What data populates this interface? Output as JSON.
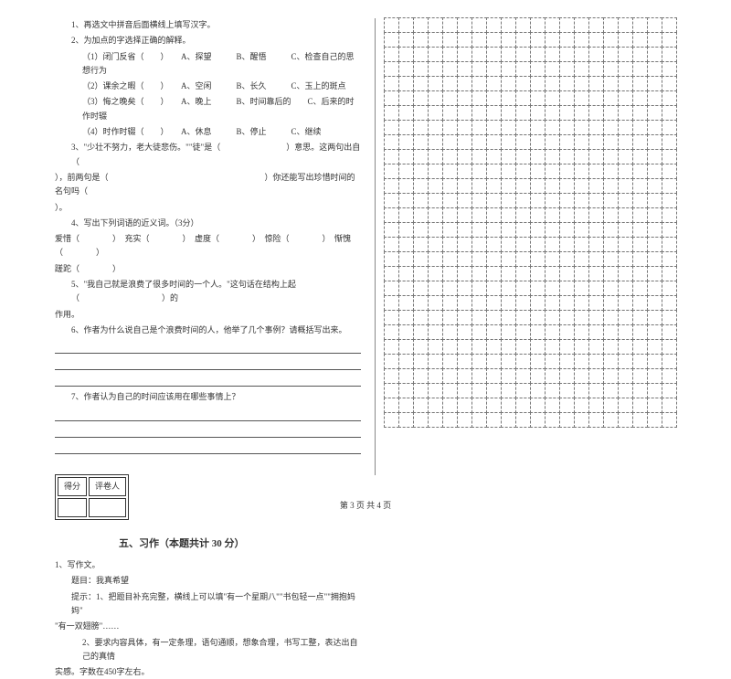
{
  "left": {
    "q1": "1、再选文中拼音后面横线上填写汉字。",
    "q2": "2、为加点的字选择正确的解释。",
    "q2_1": "（1）闭门反省（　　）　　A、探望　　　B、醒悟　　　C、检查自己的思想行为",
    "q2_2": "（2）课余之暇（　　）　　A、空闲　　　B、长久　　　C、玉上的斑点",
    "q2_3": "（3）悔之晚矣（　　）　　A、晚上　　　B、时间靠后的　　C、后来的时作时辍",
    "q2_4": "（4）时作时辍（　　）　　A、休息　　　B、停止　　　C、继续",
    "q3a": "3、\"少壮不努力，老大徒悲伤。\"\"徒\"是（　　　　　　　　）意思。这两句出自（",
    "q3b": "），前两句是（　　　　　　　　　　　　　　　　　　　）你还能写出珍惜时间的名句吗（",
    "q3c": "）。",
    "q4a": "4、写出下列词语的近义词。（3分）",
    "q4b": "爱惜（　　　　）　充实（　　　　）　虚度（　　　　）　惊险（　　　　）　惭愧（　　　　）",
    "q4c": "蹉跎（　　　　）",
    "q5a": "5、\"我自己就是浪费了很多时间的一个人。\"这句话在结构上起（　　　　　　　　　　）的",
    "q5b": "作用。",
    "q6": "6、作者为什么说自己是个浪费时间的人，他举了几个事例？请概括写出来。",
    "q7": "7、作者认为自己的时间应该用在哪些事情上？",
    "score_h1": "得分",
    "score_h2": "评卷人",
    "section5": "五、习作（本题共计 30 分）",
    "w1": "1、写作文。",
    "w2": "题目：我真希望",
    "w3a": "提示：1、把题目补充完整，横线上可以填\"有一个星期八\"\"书包轻一点\"\"拥抱妈妈\"",
    "w3b": "\"有一双翅膀\"……",
    "w4a": "2、要求内容具体，有一定条理，语句通顺，想象合理，书写工整，表达出自己的真情",
    "w4b": "实感。字数在450字左右。"
  },
  "grid": {
    "rows": 28,
    "cols": 20,
    "cell_size": 17,
    "border_style": "dashed",
    "border_color": "#777777"
  },
  "footer": "第 3 页  共 4 页",
  "colors": {
    "text": "#333333",
    "bg": "#ffffff",
    "line": "#555555"
  }
}
